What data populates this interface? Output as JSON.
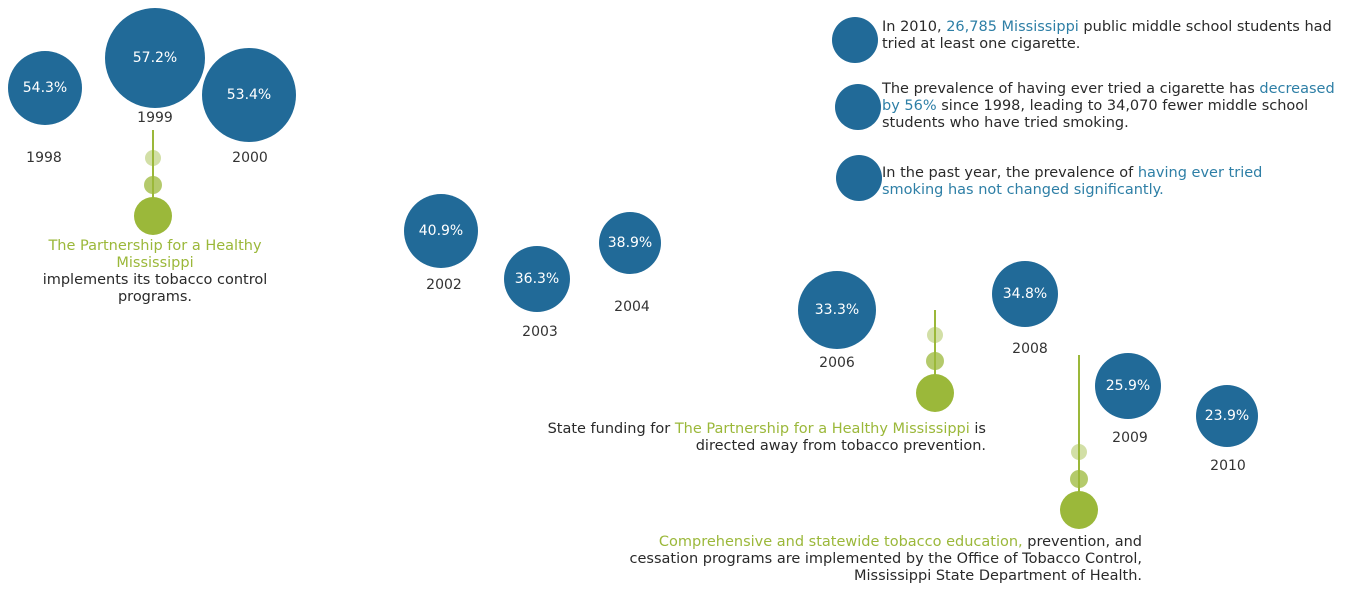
{
  "chart_data": {
    "type": "scatter",
    "title": "",
    "xlabel": "",
    "ylabel": "",
    "points": [
      {
        "year": "1998",
        "value": 54.3,
        "label": "54.3%"
      },
      {
        "year": "1999",
        "value": 57.2,
        "label": "57.2%"
      },
      {
        "year": "2000",
        "value": 53.4,
        "label": "53.4%"
      },
      {
        "year": "2002",
        "value": 40.9,
        "label": "40.9%"
      },
      {
        "year": "2003",
        "value": 36.3,
        "label": "36.3%"
      },
      {
        "year": "2004",
        "value": 38.9,
        "label": "38.9%"
      },
      {
        "year": "2006",
        "value": 33.3,
        "label": "33.3%"
      },
      {
        "year": "2008",
        "value": 34.8,
        "label": "34.8%"
      },
      {
        "year": "2009",
        "value": 25.9,
        "label": "25.9%"
      },
      {
        "year": "2010",
        "value": 23.9,
        "label": "23.9%"
      }
    ],
    "colors": {
      "bubble": "#216a98",
      "accent_green": "#9bb83a",
      "accent_blue": "#2e7fa6"
    }
  },
  "annotations": {
    "a1998": {
      "highlight": "The Partnership for a Healthy Mississippi",
      "rest": "implements its tobacco control programs."
    },
    "a2006": {
      "text_before": "State funding for ",
      "highlight": "The Partnership for a Healthy Mississippi",
      "text_after": " is directed away from tobacco prevention."
    },
    "a2009": {
      "highlight": "Comprehensive and statewide tobacco education,",
      "rest": " prevention, and cessation programs are implemented by the Office of Tobacco Control, Mississippi State Department of Health."
    }
  },
  "facts": [
    {
      "before": "In 2010, ",
      "highlight": "26,785 Mississippi",
      "after": " public middle school students had tried at least one cigarette."
    },
    {
      "before": "The prevalence of having ever tried a cigarette has ",
      "highlight": "decreased by 56%",
      "after": " since 1998, leading to 34,070 fewer middle school students who have tried smoking."
    },
    {
      "before": "In the past year, the prevalence of ",
      "highlight": "having ever tried smoking has not changed significantly.",
      "after": ""
    }
  ]
}
